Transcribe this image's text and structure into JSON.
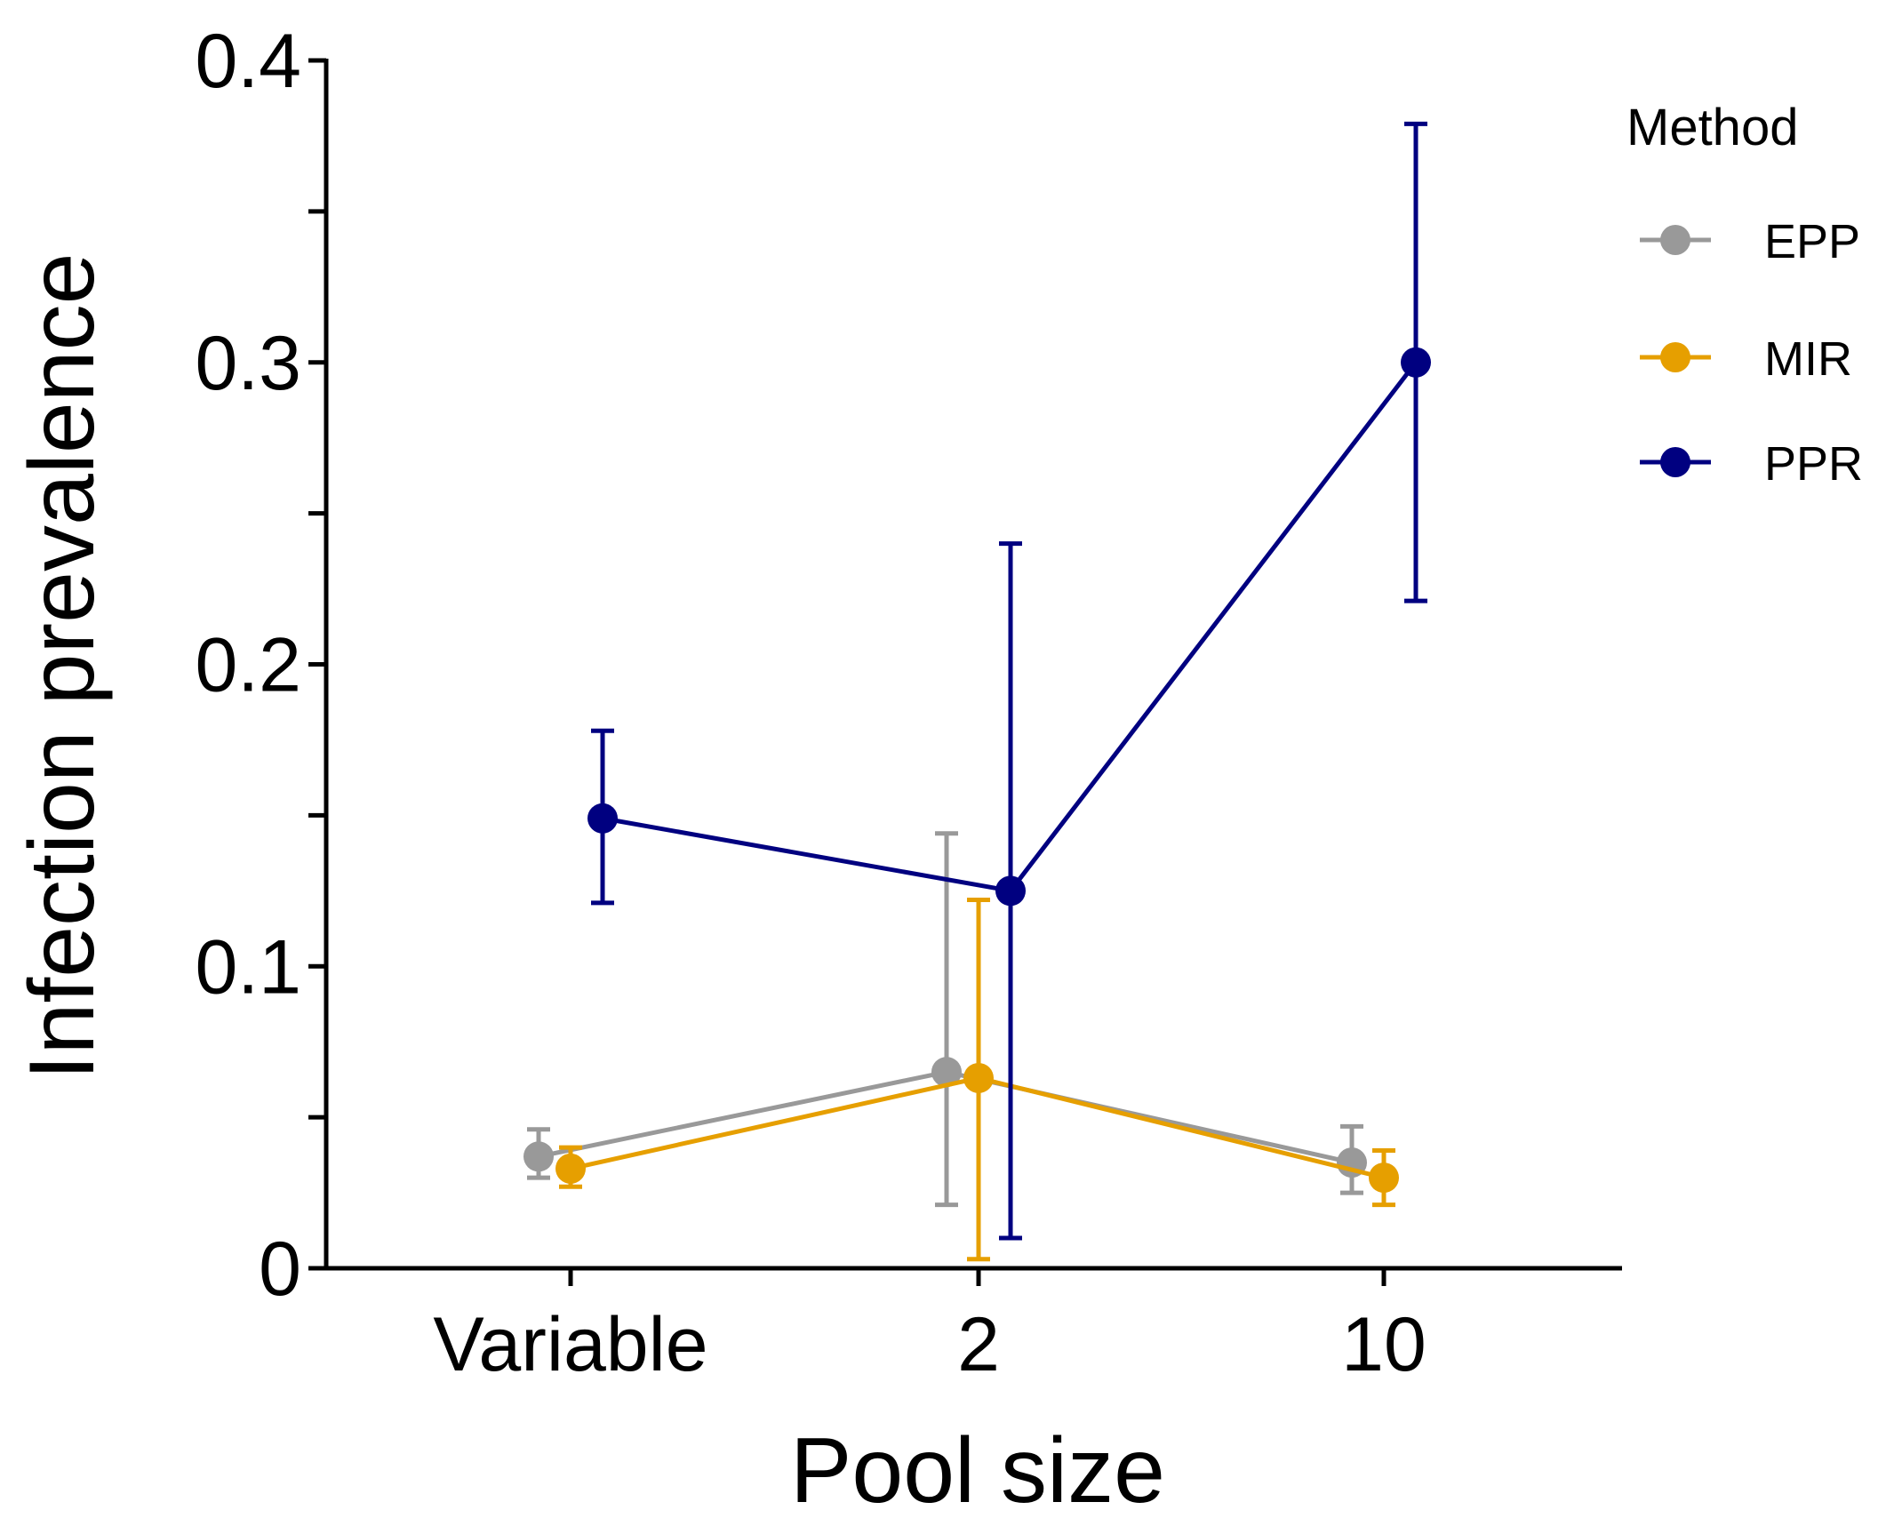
{
  "chart_data": {
    "type": "line",
    "title": "",
    "xlabel": "Pool size",
    "ylabel": "Infection prevalence",
    "categories": [
      "Variable",
      "2",
      "10"
    ],
    "ylim": [
      0,
      0.4
    ],
    "yticks": [
      0,
      0.1,
      0.2,
      0.3,
      0.4
    ],
    "ytick_labels": [
      "0",
      "0.1",
      "0.2",
      "0.3",
      "0.4"
    ],
    "legend": {
      "title": "Method",
      "position": "right"
    },
    "series": [
      {
        "name": "EPP",
        "color": "#999999",
        "values": [
          0.037,
          0.065,
          0.035
        ],
        "lower": [
          0.03,
          0.021,
          0.025
        ],
        "upper": [
          0.046,
          0.144,
          0.047
        ]
      },
      {
        "name": "MIR",
        "color": "#E69F00",
        "values": [
          0.033,
          0.063,
          0.03
        ],
        "lower": [
          0.027,
          0.003,
          0.021
        ],
        "upper": [
          0.04,
          0.122,
          0.039
        ]
      },
      {
        "name": "PPR",
        "color": "#000080",
        "values": [
          0.149,
          0.125,
          0.3
        ],
        "lower": [
          0.121,
          0.01,
          0.221
        ],
        "upper": [
          0.178,
          0.24,
          0.379
        ]
      }
    ]
  }
}
